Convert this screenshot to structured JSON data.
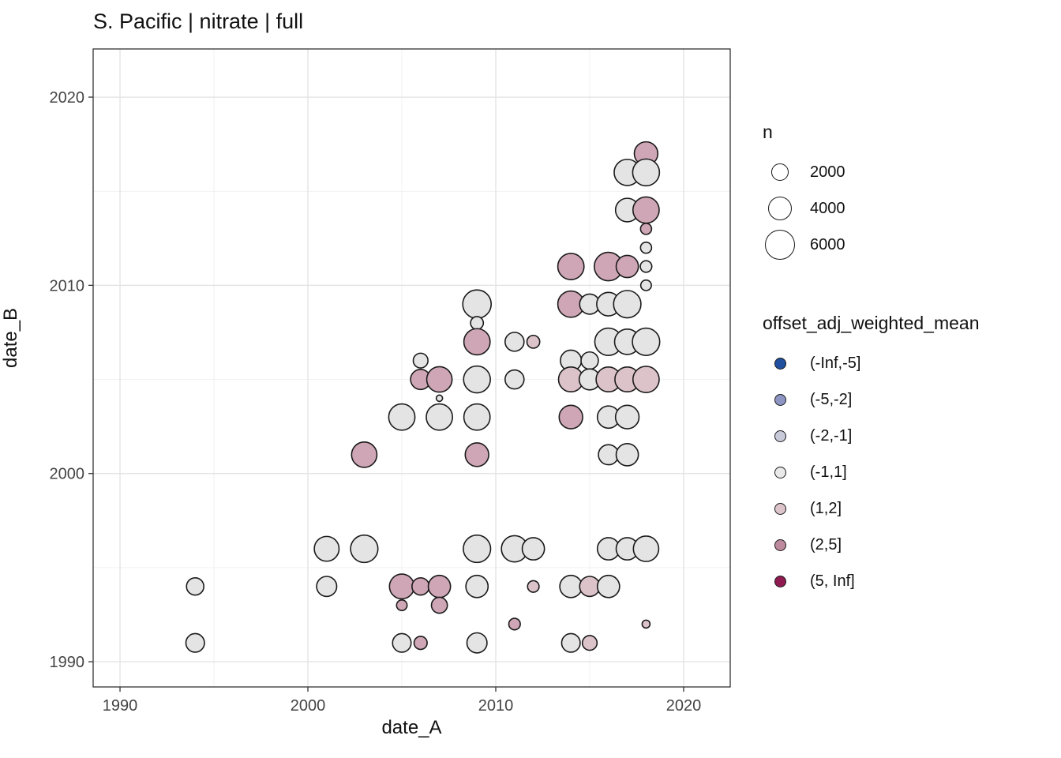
{
  "title": "S. Pacific | nitrate | full",
  "axes": {
    "x": {
      "label": "date_A",
      "ticks": [
        1990,
        2000,
        2010,
        2020
      ],
      "minor_ticks": [
        1995,
        2005,
        2015
      ]
    },
    "y": {
      "label": "date_B",
      "ticks": [
        1990,
        2000,
        2010,
        2020
      ],
      "minor_ticks": [
        1995,
        2005,
        2015
      ]
    }
  },
  "legend_size": {
    "title": "n",
    "items": [
      {
        "label": "2000",
        "n": 2000
      },
      {
        "label": "4000",
        "n": 4000
      },
      {
        "label": "6000",
        "n": 6000
      }
    ]
  },
  "legend_color": {
    "title": "offset_adj_weighted_mean",
    "items": [
      {
        "label": "(-Inf,-5]",
        "color": "#1f4f9e"
      },
      {
        "label": "(-5,-2]",
        "color": "#8d95c3"
      },
      {
        "label": "(-2,-1]",
        "color": "#c8cada"
      },
      {
        "label": "(-1,1]",
        "color": "#e9e9e9"
      },
      {
        "label": "(1,2]",
        "color": "#ddc3ca"
      },
      {
        "label": "(2,5]",
        "color": "#bd8a9d"
      },
      {
        "label": "(5, Inf]",
        "color": "#8e1a50"
      }
    ]
  },
  "style": {
    "panel_border": "#333333",
    "grid_major": "#e4e4e4",
    "grid_minor": "#f1f1f1",
    "tick_color": "#333333",
    "tick_label_color": "#444444",
    "bubble_stroke": "#1a1a1a",
    "bubble_fill_by_bin": {
      "(-1,1]": "#e4e4e4",
      "(1,2]": "#dcc3ca",
      "(2,5]": "#cfa6b5"
    }
  },
  "chart_data": {
    "type": "scatter",
    "title": "S. Pacific | nitrate | full",
    "xlabel": "date_A",
    "ylabel": "date_B",
    "xlim": [
      1988.57,
      2022.48
    ],
    "ylim": [
      1988.66,
      2022.56
    ],
    "grid": true,
    "legend_position": "right",
    "size_scale": {
      "radius_k": 0.245,
      "legend_values": [
        2000,
        4000,
        6000
      ]
    },
    "points": [
      {
        "x": 2018,
        "y": 2017,
        "n": 3700,
        "bin": "(2,5]"
      },
      {
        "x": 2017,
        "y": 2016,
        "n": 4600,
        "bin": "(-1,1]"
      },
      {
        "x": 2018,
        "y": 2016,
        "n": 4800,
        "bin": "(-1,1]"
      },
      {
        "x": 2017,
        "y": 2014,
        "n": 3700,
        "bin": "(-1,1]"
      },
      {
        "x": 2018,
        "y": 2014,
        "n": 4600,
        "bin": "(2,5]"
      },
      {
        "x": 2018,
        "y": 2013,
        "n": 820,
        "bin": "(2,5]"
      },
      {
        "x": 2018,
        "y": 2012,
        "n": 820,
        "bin": "(-1,1]"
      },
      {
        "x": 2014,
        "y": 2011,
        "n": 4600,
        "bin": "(2,5]"
      },
      {
        "x": 2016,
        "y": 2011,
        "n": 5400,
        "bin": "(2,5]"
      },
      {
        "x": 2017,
        "y": 2011,
        "n": 3300,
        "bin": "(2,5]"
      },
      {
        "x": 2018,
        "y": 2011,
        "n": 890,
        "bin": "(-1,1]"
      },
      {
        "x": 2018,
        "y": 2010,
        "n": 750,
        "bin": "(-1,1]"
      },
      {
        "x": 2009,
        "y": 2009,
        "n": 5400,
        "bin": "(-1,1]"
      },
      {
        "x": 2014,
        "y": 2009,
        "n": 4600,
        "bin": "(2,5]"
      },
      {
        "x": 2015,
        "y": 2009,
        "n": 2700,
        "bin": "(-1,1]"
      },
      {
        "x": 2016,
        "y": 2009,
        "n": 3700,
        "bin": "(-1,1]"
      },
      {
        "x": 2017,
        "y": 2009,
        "n": 5000,
        "bin": "(-1,1]"
      },
      {
        "x": 2009,
        "y": 2008,
        "n": 1100,
        "bin": "(-1,1]"
      },
      {
        "x": 2009,
        "y": 2007,
        "n": 4600,
        "bin": "(2,5]"
      },
      {
        "x": 2011,
        "y": 2007,
        "n": 2400,
        "bin": "(-1,1]"
      },
      {
        "x": 2012,
        "y": 2007,
        "n": 1100,
        "bin": "(1,2]"
      },
      {
        "x": 2016,
        "y": 2007,
        "n": 5000,
        "bin": "(-1,1]"
      },
      {
        "x": 2017,
        "y": 2007,
        "n": 4300,
        "bin": "(-1,1]"
      },
      {
        "x": 2018,
        "y": 2007,
        "n": 5000,
        "bin": "(-1,1]"
      },
      {
        "x": 2006,
        "y": 2006,
        "n": 1450,
        "bin": "(-1,1]"
      },
      {
        "x": 2014,
        "y": 2006,
        "n": 2950,
        "bin": "(-1,1]"
      },
      {
        "x": 2015,
        "y": 2006,
        "n": 2000,
        "bin": "(-1,1]"
      },
      {
        "x": 2006,
        "y": 2005,
        "n": 2700,
        "bin": "(2,5]"
      },
      {
        "x": 2007,
        "y": 2005,
        "n": 4300,
        "bin": "(2,5]"
      },
      {
        "x": 2009,
        "y": 2005,
        "n": 4800,
        "bin": "(-1,1]"
      },
      {
        "x": 2011,
        "y": 2005,
        "n": 2400,
        "bin": "(-1,1]"
      },
      {
        "x": 2014,
        "y": 2005,
        "n": 4100,
        "bin": "(1,2]"
      },
      {
        "x": 2015,
        "y": 2005,
        "n": 2950,
        "bin": "(-1,1]"
      },
      {
        "x": 2016,
        "y": 2005,
        "n": 4100,
        "bin": "(1,2]"
      },
      {
        "x": 2017,
        "y": 2005,
        "n": 4100,
        "bin": "(1,2]"
      },
      {
        "x": 2018,
        "y": 2005,
        "n": 4600,
        "bin": "(1,2]"
      },
      {
        "x": 2007,
        "y": 2004,
        "n": 270,
        "bin": "(-1,1]"
      },
      {
        "x": 2005,
        "y": 2003,
        "n": 4600,
        "bin": "(-1,1]"
      },
      {
        "x": 2007,
        "y": 2003,
        "n": 4600,
        "bin": "(-1,1]"
      },
      {
        "x": 2009,
        "y": 2003,
        "n": 4600,
        "bin": "(-1,1]"
      },
      {
        "x": 2014,
        "y": 2003,
        "n": 3700,
        "bin": "(2,5]"
      },
      {
        "x": 2016,
        "y": 2003,
        "n": 3300,
        "bin": "(-1,1]"
      },
      {
        "x": 2017,
        "y": 2003,
        "n": 3700,
        "bin": "(-1,1]"
      },
      {
        "x": 2003,
        "y": 2001,
        "n": 4300,
        "bin": "(2,5]"
      },
      {
        "x": 2009,
        "y": 2001,
        "n": 3700,
        "bin": "(2,5]"
      },
      {
        "x": 2016,
        "y": 2001,
        "n": 2700,
        "bin": "(-1,1]"
      },
      {
        "x": 2017,
        "y": 2001,
        "n": 3300,
        "bin": "(-1,1]"
      },
      {
        "x": 2001,
        "y": 1996,
        "n": 4100,
        "bin": "(-1,1]"
      },
      {
        "x": 2003,
        "y": 1996,
        "n": 5000,
        "bin": "(-1,1]"
      },
      {
        "x": 2009,
        "y": 1996,
        "n": 5000,
        "bin": "(-1,1]"
      },
      {
        "x": 2011,
        "y": 1996,
        "n": 4600,
        "bin": "(-1,1]"
      },
      {
        "x": 2012,
        "y": 1996,
        "n": 3300,
        "bin": "(-1,1]"
      },
      {
        "x": 2016,
        "y": 1996,
        "n": 3300,
        "bin": "(-1,1]"
      },
      {
        "x": 2017,
        "y": 1996,
        "n": 3300,
        "bin": "(-1,1]"
      },
      {
        "x": 2018,
        "y": 1996,
        "n": 4300,
        "bin": "(-1,1]"
      },
      {
        "x": 1994,
        "y": 1994,
        "n": 2000,
        "bin": "(-1,1]"
      },
      {
        "x": 2001,
        "y": 1994,
        "n": 2700,
        "bin": "(-1,1]"
      },
      {
        "x": 2005,
        "y": 1994,
        "n": 4100,
        "bin": "(2,5]"
      },
      {
        "x": 2006,
        "y": 1994,
        "n": 2000,
        "bin": "(2,5]"
      },
      {
        "x": 2007,
        "y": 1994,
        "n": 3300,
        "bin": "(2,5]"
      },
      {
        "x": 2009,
        "y": 1994,
        "n": 3300,
        "bin": "(-1,1]"
      },
      {
        "x": 2012,
        "y": 1994,
        "n": 890,
        "bin": "(1,2]"
      },
      {
        "x": 2014,
        "y": 1994,
        "n": 3300,
        "bin": "(-1,1]"
      },
      {
        "x": 2015,
        "y": 1994,
        "n": 2700,
        "bin": "(1,2]"
      },
      {
        "x": 2016,
        "y": 1994,
        "n": 3300,
        "bin": "(-1,1]"
      },
      {
        "x": 2005,
        "y": 1993,
        "n": 750,
        "bin": "(2,5]"
      },
      {
        "x": 2007,
        "y": 1993,
        "n": 1700,
        "bin": "(2,5]"
      },
      {
        "x": 2011,
        "y": 1992,
        "n": 890,
        "bin": "(2,5]"
      },
      {
        "x": 2018,
        "y": 1992,
        "n": 420,
        "bin": "(1,2]"
      },
      {
        "x": 1994,
        "y": 1991,
        "n": 2300,
        "bin": "(-1,1]"
      },
      {
        "x": 2005,
        "y": 1991,
        "n": 2300,
        "bin": "(-1,1]"
      },
      {
        "x": 2006,
        "y": 1991,
        "n": 1150,
        "bin": "(2,5]"
      },
      {
        "x": 2009,
        "y": 1991,
        "n": 2700,
        "bin": "(-1,1]"
      },
      {
        "x": 2014,
        "y": 1991,
        "n": 2300,
        "bin": "(-1,1]"
      },
      {
        "x": 2015,
        "y": 1991,
        "n": 1450,
        "bin": "(1,2]"
      }
    ]
  }
}
